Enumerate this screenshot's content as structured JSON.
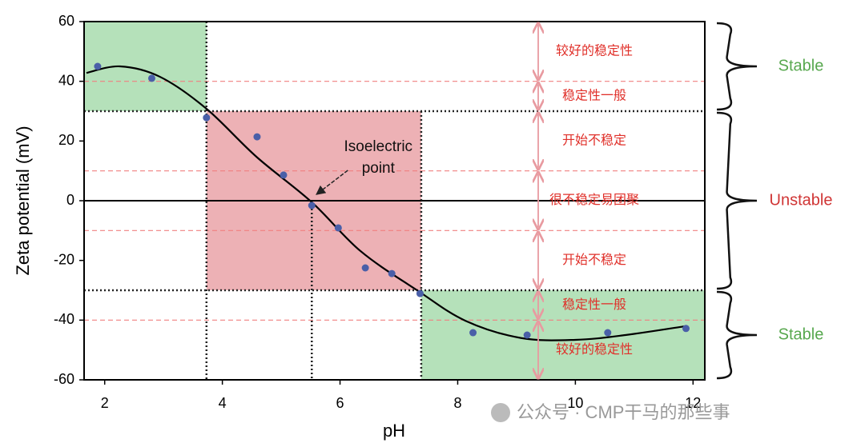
{
  "chart_data": {
    "type": "scatter",
    "xlabel": "pH",
    "ylabel": "Zeta potential (mV)",
    "xlim": [
      1.65,
      12.2
    ],
    "ylim": [
      -60,
      60
    ],
    "xticks": [
      2,
      4,
      6,
      8,
      10,
      12
    ],
    "yticks": [
      -60,
      -40,
      -20,
      0,
      20,
      40,
      60
    ],
    "points": {
      "color": "#4a5fa8",
      "x": [
        1.88,
        2.8,
        3.73,
        4.59,
        5.04,
        5.52,
        5.97,
        6.43,
        6.88,
        7.36,
        8.26,
        9.18,
        10.55,
        11.88
      ],
      "y": [
        45,
        41,
        27.8,
        21.4,
        8.6,
        -1.6,
        -9.1,
        -22.5,
        -24.4,
        -31.1,
        -44.2,
        -45,
        -44.2,
        -42.8
      ]
    },
    "curve": {
      "color": "#000000",
      "x": [
        1.69,
        2.26,
        2.94,
        3.73,
        4.58,
        5.52,
        6.35,
        7.31,
        8.13,
        9.08,
        10,
        10.85,
        11.88
      ],
      "y": [
        42.8,
        45,
        41.5,
        30.8,
        14.7,
        -0.5,
        -16.9,
        -30,
        -40.2,
        -46,
        -46.6,
        -45,
        -42
      ]
    },
    "regions": [
      {
        "x": [
          1.65,
          3.73
        ],
        "y": [
          30,
          60
        ],
        "color": "#a8dcae"
      },
      {
        "x": [
          3.73,
          7.38
        ],
        "y": [
          -30,
          30
        ],
        "color": "#eaa3a8"
      },
      {
        "x": [
          7.38,
          12.2
        ],
        "y": [
          -60,
          -30
        ],
        "color": "#a8dcae"
      }
    ],
    "reference_lines": [
      {
        "axis": "y",
        "value": 30,
        "style": "dotted",
        "color": "#222222"
      },
      {
        "axis": "y",
        "value": -30,
        "style": "dotted",
        "color": "#222222"
      },
      {
        "axis": "y",
        "value": 0,
        "style": "solid",
        "color": "#000000"
      },
      {
        "axis": "y",
        "value": 40,
        "style": "dashed",
        "color": "#f08080"
      },
      {
        "axis": "y",
        "value": 10,
        "style": "dashed",
        "color": "#f08080"
      },
      {
        "axis": "y",
        "value": -10,
        "style": "dashed",
        "color": "#f08080"
      },
      {
        "axis": "y",
        "value": -40,
        "style": "dashed",
        "color": "#f08080"
      },
      {
        "axis": "x",
        "value": 3.73,
        "from": 60,
        "to": -60,
        "style": "dotted",
        "color": "#222222"
      },
      {
        "axis": "x",
        "value": 5.52,
        "from": 0,
        "to": -60,
        "style": "dotted",
        "color": "#222222"
      },
      {
        "axis": "x",
        "value": 7.38,
        "from": 30,
        "to": -60,
        "style": "dotted",
        "color": "#222222"
      }
    ],
    "annotation": {
      "lines": [
        "Isoelectric",
        "point"
      ],
      "x": 5.52,
      "y": 0
    },
    "zones": [
      {
        "from": 60,
        "to": 40,
        "label": "较好的稳定性"
      },
      {
        "from": 40,
        "to": 30,
        "label": "稳定性一般"
      },
      {
        "from": 30,
        "to": 10,
        "label": "开始不稳定"
      },
      {
        "from": 10,
        "to": -10,
        "label": "很不稳定易团聚"
      },
      {
        "from": -10,
        "to": -30,
        "label": "开始不稳定"
      },
      {
        "from": -30,
        "to": -40,
        "label": "稳定性一般"
      },
      {
        "from": -40,
        "to": -60,
        "label": "较好的稳定性"
      }
    ],
    "stability": [
      {
        "from": 60,
        "to": 30,
        "label": "Stable",
        "color": "#58a84f"
      },
      {
        "from": 30,
        "to": -30,
        "label": "Unstable",
        "color": "#d03535"
      },
      {
        "from": -30,
        "to": -60,
        "label": "Stable",
        "color": "#58a84f"
      }
    ]
  },
  "watermark": "公众号 · CMP干马的那些事"
}
